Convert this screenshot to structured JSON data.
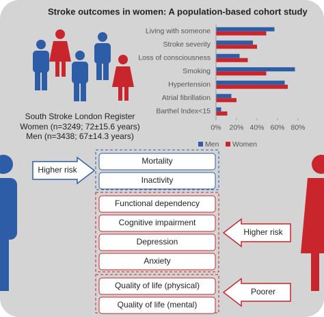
{
  "title": "Stroke outcomes in women: A population-based cohort study",
  "register": {
    "name": "South Stroke London Register",
    "women": "Women (n=3249; 72±15.6 years)",
    "men": "Men (n=3438; 67±14.3 years)"
  },
  "chart_data": {
    "type": "bar",
    "orientation": "horizontal",
    "categories": [
      "Living with someone",
      "Stroke severity",
      "Loss of consciousness",
      "Smoking",
      "Hypertension",
      "Atrial fibrillation",
      "Barthel Index<15"
    ],
    "series": [
      {
        "name": "Men",
        "color": "#2e5da8",
        "values": [
          57,
          36,
          23,
          77,
          67,
          15,
          5
        ]
      },
      {
        "name": "Women",
        "color": "#c8252c",
        "values": [
          49,
          40,
          31,
          49,
          70,
          20,
          11
        ]
      }
    ],
    "xlim": [
      0,
      80
    ],
    "xticks": [
      {
        "value": 0,
        "label": "0%"
      },
      {
        "value": 20,
        "label": "20%"
      },
      {
        "value": 40,
        "label": "40%"
      },
      {
        "value": 60,
        "label": "60%"
      },
      {
        "value": 80,
        "label": "80%"
      }
    ]
  },
  "mortality_group": {
    "arrow": "Higher risk",
    "items": [
      "Mortality",
      "Inactivity"
    ]
  },
  "disability_group": {
    "arrow": "Higher risk",
    "items": [
      "Functional dependency",
      "Cognitive impairment",
      "Depression",
      "Anxiety"
    ]
  },
  "quality_group": {
    "arrow": "Poorer",
    "items": [
      "Quality of life (physical)",
      "Quality of life (mental)"
    ]
  }
}
